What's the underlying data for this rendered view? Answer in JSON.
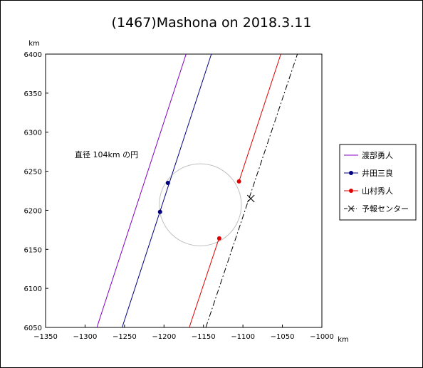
{
  "chart_data": {
    "type": "line",
    "title": "(1467)Mashona on 2018.3.11",
    "xlabel": "km",
    "ylabel": "km",
    "xlim": [
      -1350,
      -1000
    ],
    "ylim": [
      6050,
      6400
    ],
    "x_ticks": [
      -1350,
      -1300,
      -1250,
      -1200,
      -1150,
      -1100,
      -1050,
      -1000
    ],
    "y_ticks": [
      6050,
      6100,
      6150,
      6200,
      6250,
      6300,
      6350,
      6400
    ],
    "x_tick_labels": [
      "−1350",
      "−1300",
      "−1250",
      "−1200",
      "−1150",
      "−1100",
      "−1050",
      "−1000"
    ],
    "y_tick_labels": [
      "6050",
      "6100",
      "6150",
      "6200",
      "6250",
      "6300",
      "6350",
      "6400"
    ],
    "grid": false,
    "legend_position": "right",
    "annotation": "直径 104km の円",
    "circle": {
      "center": [
        -1154,
        6207
      ],
      "diameter_km": 104,
      "color": "#c0c0c0"
    },
    "series": [
      {
        "name": "渡部勇人",
        "color": "#8000c0",
        "style": "solid",
        "lines": [
          [
            [
              -1285,
              6050
            ],
            [
              -1172,
              6400
            ]
          ]
        ],
        "points": []
      },
      {
        "name": "井田三良",
        "color": "#000080",
        "style": "solid",
        "lines": [
          [
            [
              -1253,
              6050
            ],
            [
              -1140,
              6400
            ]
          ]
        ],
        "points": [
          [
            -1195,
            6235
          ],
          [
            -1205,
            6198
          ]
        ]
      },
      {
        "name": "山村秀人",
        "color": "#e00000",
        "style": "solid",
        "lines": [
          [
            [
              -1168,
              6050
            ],
            [
              -1130,
              6165
            ]
          ],
          [
            [
              -1105,
              6237
            ],
            [
              -1052,
              6400
            ]
          ]
        ],
        "points": [
          [
            -1105,
            6237
          ],
          [
            -1130,
            6164
          ]
        ]
      },
      {
        "name": "予報センター",
        "color": "#000000",
        "style": "dashdot",
        "lines": [
          [
            [
              -1147,
              6050
            ],
            [
              -1031,
              6400
            ]
          ]
        ],
        "points": [
          [
            -1090,
            6215
          ]
        ]
      }
    ]
  }
}
